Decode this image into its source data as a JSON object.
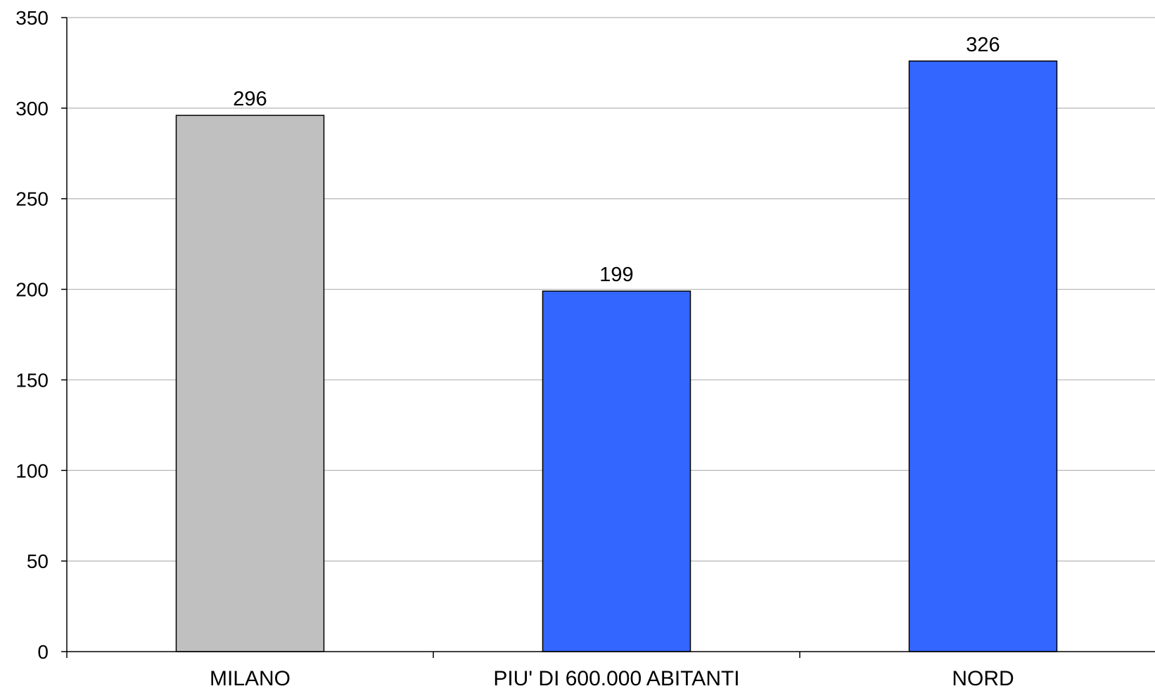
{
  "chart_data": {
    "type": "bar",
    "title": "",
    "xlabel": "",
    "ylabel": "",
    "categories": [
      "MILANO",
      "PIU' DI  600.000 ABITANTI",
      "NORD"
    ],
    "values": [
      296,
      199,
      326
    ],
    "data_labels": [
      "296",
      "199",
      "326"
    ],
    "bar_colors": [
      "#c0c0c0",
      "#3366ff",
      "#3366ff"
    ],
    "ylim": [
      0,
      350
    ],
    "yticks": [
      0,
      50,
      100,
      150,
      200,
      250,
      300,
      350
    ],
    "grid": true,
    "legend": "none"
  },
  "colors": {
    "gridline": "#b4b4b4",
    "axis": "#000000",
    "bar_border": "#000000"
  }
}
